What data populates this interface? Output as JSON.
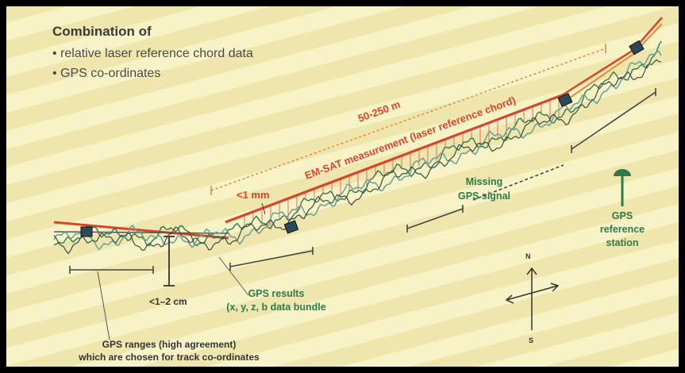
{
  "header": {
    "title": "Combination of",
    "bullet1": "• relative laser reference chord data",
    "bullet2": "• GPS co-ordinates"
  },
  "labels": {
    "range": "50-250 m",
    "emsat": "EM-SAT measurement (laser reference chord)",
    "lt1mm": "<1 mm",
    "missing_line1": "Missing",
    "missing_line2": "GPS signal",
    "refstation_line1": "GPS",
    "refstation_line2": "reference",
    "refstation_line3": "station",
    "gps_results_line1": "GPS results",
    "gps_results_line2": "(x, y, z, b data bundle",
    "lt12cm": "<1–2 cm",
    "gps_ranges_line1": "GPS ranges (high agreement)",
    "gps_ranges_line2": "which are chosen for track co-ordinates",
    "compass_n": "N",
    "compass_s": "S"
  },
  "colors": {
    "red": "#d8452b",
    "orange": "#e0893a",
    "green": "#2f7a4a",
    "teal": "#6fa39a",
    "dark": "#333333"
  }
}
